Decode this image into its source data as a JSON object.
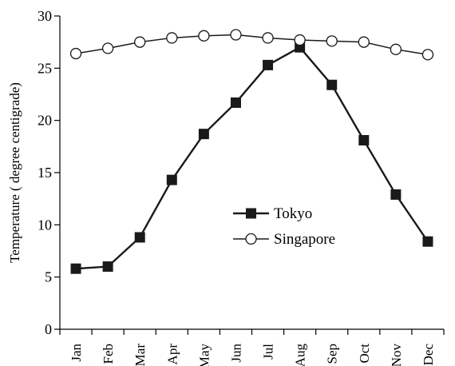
{
  "chart_data": {
    "type": "line",
    "title": "",
    "xlabel": "",
    "ylabel": "Temperature ( degree centigrade)",
    "categories": [
      "Jan",
      "Feb",
      "Mar",
      "Apr",
      "May",
      "Jun",
      "Jul",
      "Aug",
      "Sep",
      "Oct",
      "Nov",
      "Dec"
    ],
    "ylim": [
      0,
      30
    ],
    "yticks": [
      "0",
      "5",
      "10",
      "15",
      "20",
      "25",
      "30"
    ],
    "grid": false,
    "legend_position": "center-right",
    "series": [
      {
        "name": "Tokyo",
        "marker": "filled-square",
        "color": "#1a1a1a",
        "values": [
          5.8,
          6.0,
          8.8,
          14.3,
          18.7,
          21.7,
          25.3,
          27.0,
          23.4,
          18.1,
          12.9,
          8.4
        ]
      },
      {
        "name": "Singapore",
        "marker": "open-circle",
        "color": "#1a1a1a",
        "values": [
          26.4,
          26.9,
          27.5,
          27.9,
          28.1,
          28.2,
          27.9,
          27.7,
          27.6,
          27.5,
          26.8,
          26.3
        ]
      }
    ]
  }
}
